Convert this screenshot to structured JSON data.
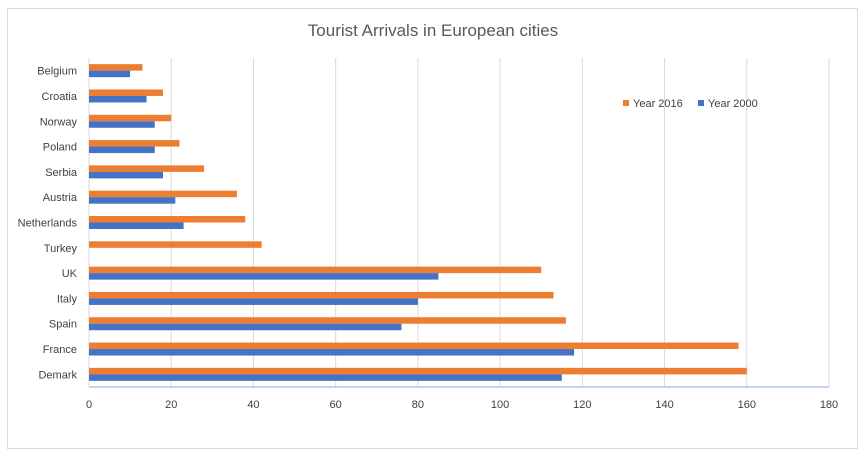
{
  "chart_data": {
    "type": "bar",
    "orientation": "horizontal",
    "title": "Tourist Arrivals in European cities",
    "categories": [
      "Belgium",
      "Croatia",
      "Norway",
      "Poland",
      "Serbia",
      "Austria",
      "Netherlands",
      "Turkey",
      "UK",
      "Italy",
      "Spain",
      "France",
      "Demark"
    ],
    "series": [
      {
        "name": "Year 2016",
        "color": "#ed7d31",
        "values": [
          13,
          18,
          20,
          22,
          28,
          36,
          38,
          42,
          110,
          113,
          116,
          158,
          160
        ]
      },
      {
        "name": "Year 2000",
        "color": "#4472c4",
        "values": [
          10,
          14,
          16,
          16,
          18,
          21,
          23,
          0,
          85,
          80,
          76,
          118,
          115
        ]
      }
    ],
    "xlim": [
      0,
      180
    ],
    "xticks": [
      0,
      20,
      40,
      60,
      80,
      100,
      120,
      140,
      160,
      180
    ],
    "grid": true,
    "legend_position": "top-right",
    "legend_order": [
      "Year 2016",
      "Year 2000"
    ]
  }
}
